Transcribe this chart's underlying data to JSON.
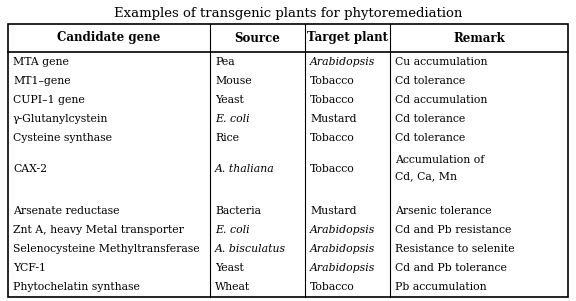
{
  "title": "Examples of transgenic plants for phytoremediation",
  "headers": [
    "Candidate gene",
    "Source",
    "Target plant",
    "Remark"
  ],
  "rows": [
    [
      "MTA gene",
      "Pea",
      "Arabidopsis",
      "Cu accumulation"
    ],
    [
      "MT1–gene",
      "Mouse",
      "Tobacco",
      "Cd tolerance"
    ],
    [
      "CUPI–1 gene",
      "Yeast",
      "Tobacco",
      "Cd accumulation"
    ],
    [
      "γ-Glutanylcystein",
      "E. coli",
      "Mustard",
      "Cd tolerance"
    ],
    [
      "Cysteine synthase",
      "Rice",
      "Tobacco",
      "Cd tolerance"
    ],
    [
      "CAX-2",
      "A. thaliana",
      "Tobacco",
      "Accumulation of\nCd, Ca, Mn"
    ],
    [
      "",
      "",
      "",
      ""
    ],
    [
      "Arsenate reductase",
      "Bacteria",
      "Mustard",
      "Arsenic tolerance"
    ],
    [
      "Znt A, heavy Metal transporter",
      "E. coli",
      "Arabidopsis",
      "Cd and Pb resistance"
    ],
    [
      "Selenocysteine Methyltransferase",
      "A. bisculatus",
      "Arabidopsis",
      "Resistance to selenite"
    ],
    [
      "YCF-1",
      "Yeast",
      "Arabidopsis",
      "Cd and Pb tolerance"
    ],
    [
      "Phytochelatin synthase",
      "Wheat",
      "Tobacco",
      "Pb accumulation"
    ]
  ],
  "italic_source": [
    false,
    false,
    false,
    true,
    false,
    true,
    false,
    false,
    true,
    true,
    false,
    false
  ],
  "italic_target": [
    true,
    false,
    false,
    false,
    false,
    false,
    false,
    false,
    true,
    true,
    true,
    false
  ],
  "bg_color": "#ffffff",
  "border_color": "#000000",
  "title_fontsize": 9.5,
  "header_fontsize": 8.5,
  "body_fontsize": 7.8
}
